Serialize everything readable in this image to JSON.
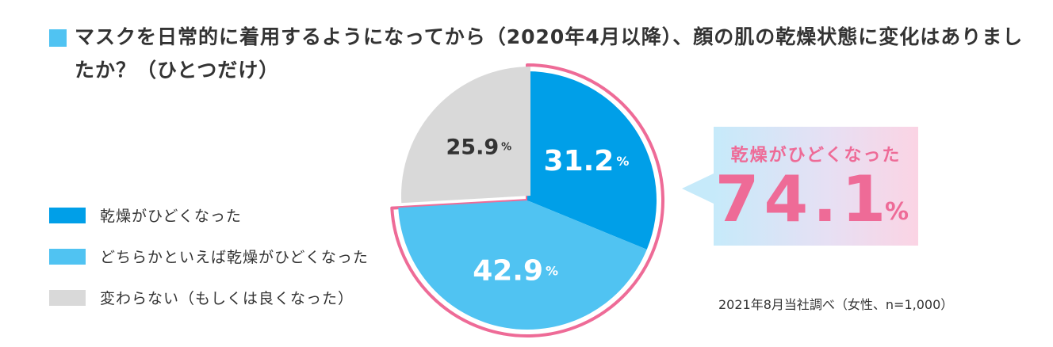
{
  "title": "マスクを日常的に着用するようになってから（2020年4月以降）、顔の肌の乾燥状態に変化はありましたか？（ひとつだけ）",
  "colors": {
    "accent_square": "#50c3f2",
    "highlight_ring": "#ee6b97",
    "callout_text": "#ee6b97"
  },
  "chart_data": {
    "type": "pie",
    "unit": "%",
    "slices": [
      {
        "label": "乾燥がひどくなった",
        "value": 31.2,
        "display": "31.2",
        "color": "#009fe8",
        "label_color": "#ffffff"
      },
      {
        "label": "どちらかといえば乾燥がひどくなった",
        "value": 42.9,
        "display": "42.9",
        "color": "#50c3f2",
        "label_color": "#ffffff"
      },
      {
        "label": "変わらない（もしくは良くなった）",
        "value": 25.9,
        "display": "25.9",
        "color": "#d9d9d9",
        "label_color": "#333333"
      }
    ],
    "highlight": {
      "label": "乾燥がひどくなった",
      "value": "74.1",
      "unit": "%"
    }
  },
  "source": "2021年8月当社調べ（女性、n=1,000）"
}
